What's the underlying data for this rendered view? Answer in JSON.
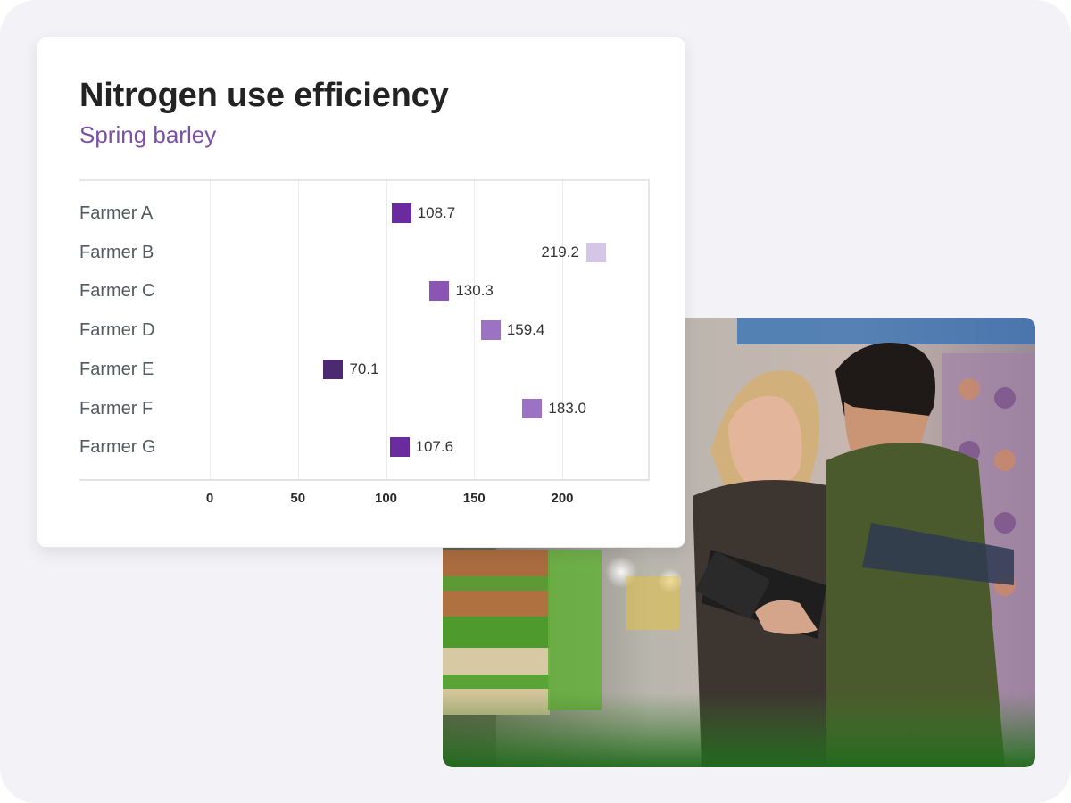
{
  "card": {
    "title": "Nitrogen use efficiency",
    "subtitle": "Spring barley"
  },
  "photo": {
    "description": "Two farm workers in a warehouse looking at a tablet and clipboard, crates of lettuce in foreground"
  },
  "colors": {
    "frame_bg": "#f3f3f7",
    "title": "#232323",
    "subtitle": "#7b4fa6",
    "marker_a": "#6a2aa0",
    "marker_b": "#d6c6e6",
    "marker_c": "#8a55b5",
    "marker_d": "#9c73c4",
    "marker_e": "#4b2a72",
    "marker_f": "#9c73c4",
    "marker_g": "#6a2aa0"
  },
  "chart_data": {
    "type": "scatter",
    "title": "Nitrogen use efficiency",
    "subtitle": "Spring barley",
    "orientation": "horizontal",
    "categories": [
      "Farmer A",
      "Farmer B",
      "Farmer C",
      "Farmer D",
      "Farmer E",
      "Farmer F",
      "Farmer G"
    ],
    "values": [
      108.7,
      219.2,
      130.3,
      159.4,
      70.1,
      183.0,
      107.6
    ],
    "value_labels": [
      "108.7",
      "219.2",
      "130.3",
      "159.4",
      "70.1",
      "183.0",
      "107.6"
    ],
    "marker_colors": [
      "#6a2aa0",
      "#d6c6e6",
      "#8a55b5",
      "#9c73c4",
      "#4b2a72",
      "#9c73c4",
      "#6a2aa0"
    ],
    "label_side": [
      "right",
      "left",
      "right",
      "right",
      "right",
      "right",
      "right"
    ],
    "xticks": [
      0,
      50,
      100,
      150,
      200
    ],
    "xtick_labels": [
      "0",
      "50",
      "100",
      "150",
      "200"
    ],
    "xlim": [
      0,
      248
    ],
    "xlabel": "",
    "ylabel": "",
    "grid": "vertical",
    "legend": "none"
  }
}
